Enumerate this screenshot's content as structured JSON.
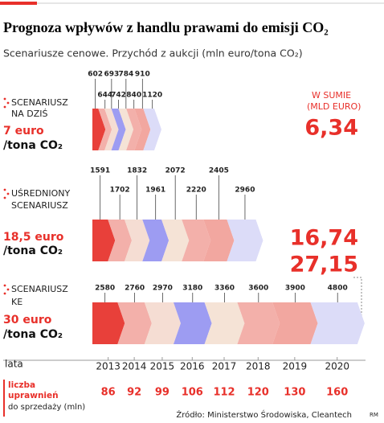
{
  "chart_data": {
    "type": "stacked-arrow",
    "title": "Prognoza wpływów z handlu prawami do emisji CO₂",
    "subtitle": "Scenariusze cenowe. Przychód z aukcji (mln euro/tona CO₂)",
    "total_heading": [
      "W SUMIE",
      "(MLD EURO)"
    ],
    "axis_label": "lata",
    "categories": [
      "2013",
      "2014",
      "2015",
      "2016",
      "2017",
      "2018",
      "2019",
      "2020"
    ],
    "colors": [
      "#e8403a",
      "#f3b0aa",
      "#f5ddd3",
      "#9d9cf2",
      "#f5e3d6",
      "#f3b0aa",
      "#f2a7a0",
      "#dcdcf8"
    ],
    "series": [
      {
        "name": [
          "SCENARIUSZ",
          "NA DZIŚ"
        ],
        "price": "7 euro",
        "unit": "/tona CO₂",
        "values": [
          602,
          644,
          693,
          742,
          784,
          840,
          910,
          1120
        ],
        "total": 6.34,
        "total_label": "6,34"
      },
      {
        "name": [
          "UŚREDNIONY",
          "SCENARIUSZ"
        ],
        "price": "18,5 euro",
        "unit": "/tona CO₂",
        "values": [
          1591,
          1702,
          1832,
          1961,
          2072,
          2220,
          2405,
          2960
        ],
        "total": 16.74,
        "total_label": "16,74"
      },
      {
        "name": [
          "SCENARIUSZ",
          "KE"
        ],
        "price": "30 euro",
        "unit": "/tona CO₂",
        "values": [
          2580,
          2760,
          2970,
          3180,
          3360,
          3600,
          3900,
          4800
        ],
        "total": 27.15,
        "total_label": "27,15"
      }
    ],
    "allowances": {
      "label": [
        "liczba",
        "uprawnień",
        "do sprzedaży (mln)"
      ],
      "values": [
        86,
        92,
        99,
        106,
        112,
        120,
        130,
        160
      ]
    },
    "source": "Źródło: Ministerstwo Środowiska, Cleantech",
    "credit": "RM"
  }
}
